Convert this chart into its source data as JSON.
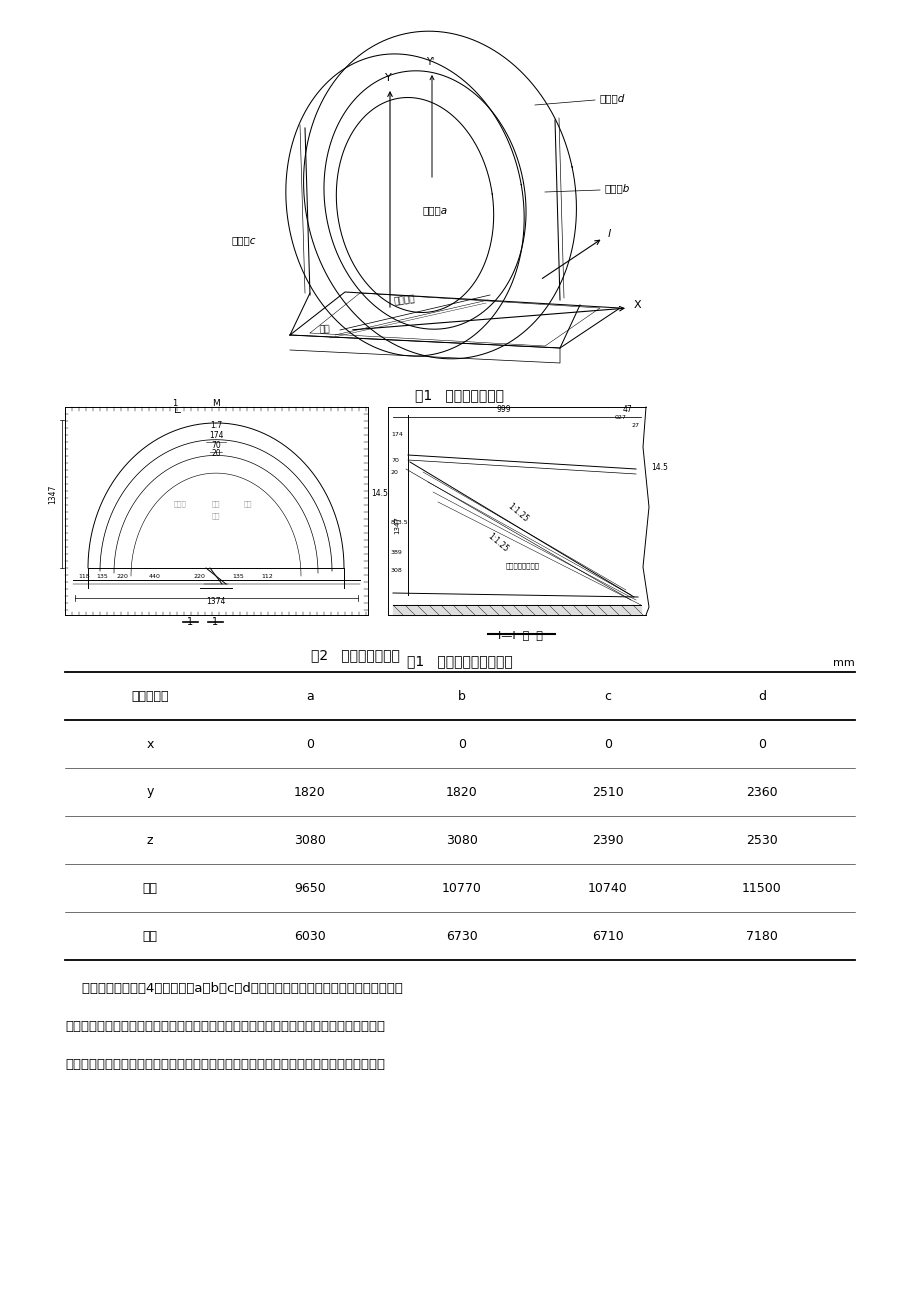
{
  "page_bg": "#ffffff",
  "fig1_caption": "图1   洞门侧视轮廓图",
  "fig2_caption": "图2   洞门结构示意图",
  "table_title": "表1   帽檐轮廓线椭圆要素",
  "table_unit": "mm",
  "table_headers": [
    "轮廓线编号",
    "a",
    "b",
    "c",
    "d"
  ],
  "table_rows": [
    [
      "x",
      "0",
      "0",
      "0",
      "0"
    ],
    [
      "y",
      "1820",
      "1820",
      "2510",
      "2360"
    ],
    [
      "z",
      "3080",
      "3080",
      "2390",
      "2530"
    ],
    [
      "长轴",
      "9650",
      "10770",
      "10740",
      "11500"
    ],
    [
      "短轴",
      "6030",
      "6730",
      "6710",
      "7180"
    ]
  ],
  "para_line1": "    帽檐式斜切式洞门4条椭圆曲线a、b、c、d长短轴均不相同，且其圆心位于与线路方向",
  "para_line2": "垂直的不同平面内，每个椭圆所在的平面与水平方向的夹角也是不同的，使得每条曲线的放",
  "para_line3": "样数据要经过数学公式推导，才能计算得出，这样做不仅麻烦，同时也会降低挡头模板尺寸"
}
